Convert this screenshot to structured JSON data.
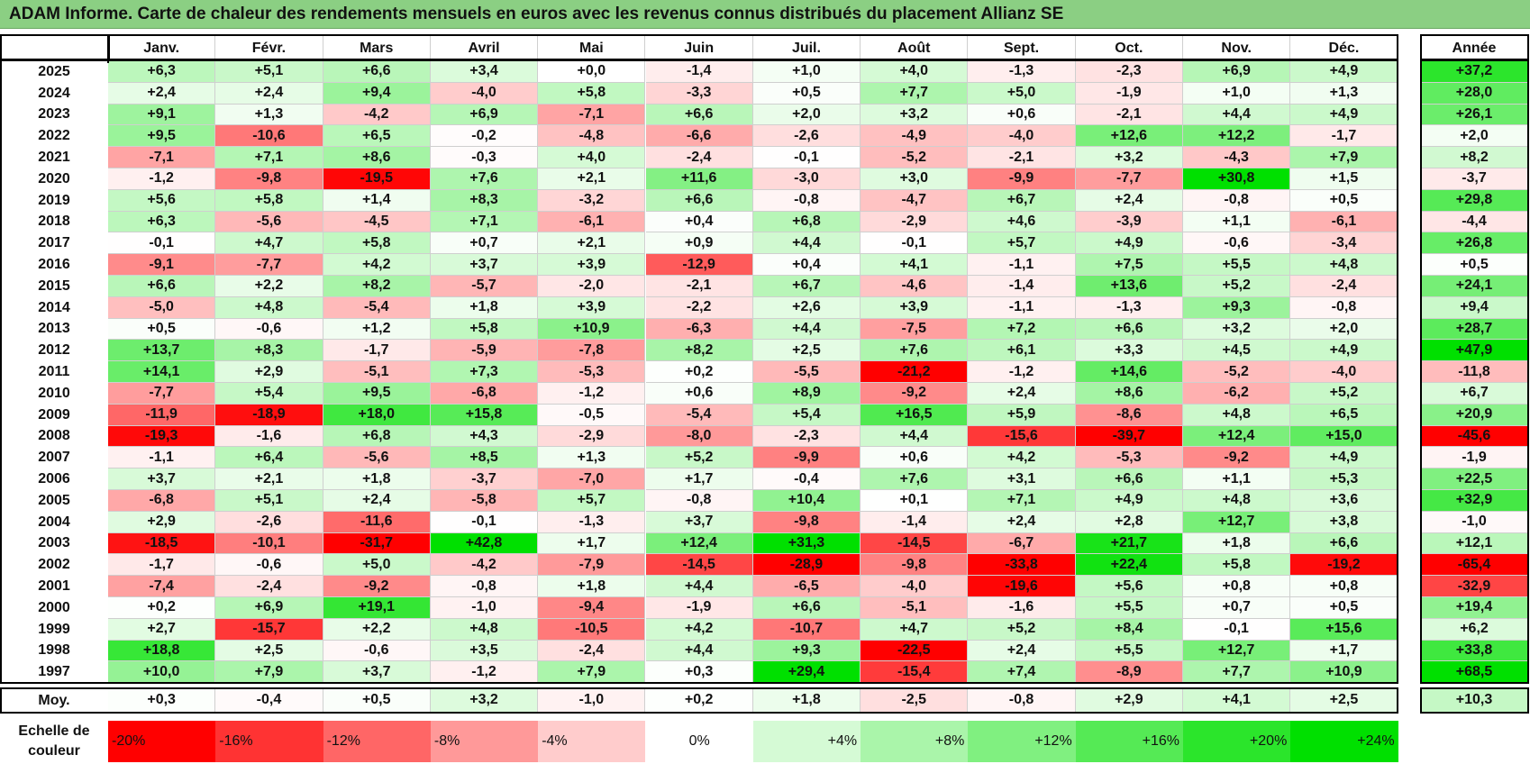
{
  "title": "ADAM Informe. Carte de chaleur des rendements mensuels en euros avec les revenus connus distribués du placement Allianz SE",
  "chart_data": {
    "type": "heatmap",
    "title": "ADAM Informe. Carte de chaleur des rendements mensuels en euros avec les revenus connus distribués du placement Allianz SE",
    "columns": [
      "Janv.",
      "Févr.",
      "Mars",
      "Avril",
      "Mai",
      "Juin",
      "Juil.",
      "Août",
      "Sept.",
      "Oct.",
      "Nov.",
      "Déc."
    ],
    "annual_header": "Année",
    "rows": [
      {
        "year": "2025",
        "values": [
          "+6,3",
          "+5,1",
          "+6,6",
          "+3,4",
          "+0,0",
          "-1,4",
          "+1,0",
          "+4,0",
          "-1,3",
          "-2,3",
          "+6,9",
          "+4,9"
        ],
        "annual": "+37,2"
      },
      {
        "year": "2024",
        "values": [
          "+2,4",
          "+2,4",
          "+9,4",
          "-4,0",
          "+5,8",
          "-3,3",
          "+0,5",
          "+7,7",
          "+5,0",
          "-1,9",
          "+1,0",
          "+1,3"
        ],
        "annual": "+28,0"
      },
      {
        "year": "2023",
        "values": [
          "+9,1",
          "+1,3",
          "-4,2",
          "+6,9",
          "-7,1",
          "+6,6",
          "+2,0",
          "+3,2",
          "+0,6",
          "-2,1",
          "+4,4",
          "+4,9"
        ],
        "annual": "+26,1"
      },
      {
        "year": "2022",
        "values": [
          "+9,5",
          "-10,6",
          "+6,5",
          "-0,2",
          "-4,8",
          "-6,6",
          "-2,6",
          "-4,9",
          "-4,0",
          "+12,6",
          "+12,2",
          "-1,7"
        ],
        "annual": "+2,0"
      },
      {
        "year": "2021",
        "values": [
          "-7,1",
          "+7,1",
          "+8,6",
          "-0,3",
          "+4,0",
          "-2,4",
          "-0,1",
          "-5,2",
          "-2,1",
          "+3,2",
          "-4,3",
          "+7,9"
        ],
        "annual": "+8,2"
      },
      {
        "year": "2020",
        "values": [
          "-1,2",
          "-9,8",
          "-19,5",
          "+7,6",
          "+2,1",
          "+11,6",
          "-3,0",
          "+3,0",
          "-9,9",
          "-7,7",
          "+30,8",
          "+1,5"
        ],
        "annual": "-3,7"
      },
      {
        "year": "2019",
        "values": [
          "+5,6",
          "+5,8",
          "+1,4",
          "+8,3",
          "-3,2",
          "+6,6",
          "-0,8",
          "-4,7",
          "+6,7",
          "+2,4",
          "-0,8",
          "+0,5"
        ],
        "annual": "+29,8"
      },
      {
        "year": "2018",
        "values": [
          "+6,3",
          "-5,6",
          "-4,5",
          "+7,1",
          "-6,1",
          "+0,4",
          "+6,8",
          "-2,9",
          "+4,6",
          "-3,9",
          "+1,1",
          "-6,1"
        ],
        "annual": "-4,4"
      },
      {
        "year": "2017",
        "values": [
          "-0,1",
          "+4,7",
          "+5,8",
          "+0,7",
          "+2,1",
          "+0,9",
          "+4,4",
          "-0,1",
          "+5,7",
          "+4,9",
          "-0,6",
          "-3,4"
        ],
        "annual": "+26,8"
      },
      {
        "year": "2016",
        "values": [
          "-9,1",
          "-7,7",
          "+4,2",
          "+3,7",
          "+3,9",
          "-12,9",
          "+0,4",
          "+4,1",
          "-1,1",
          "+7,5",
          "+5,5",
          "+4,8"
        ],
        "annual": "+0,5"
      },
      {
        "year": "2015",
        "values": [
          "+6,6",
          "+2,2",
          "+8,2",
          "-5,7",
          "-2,0",
          "-2,1",
          "+6,7",
          "-4,6",
          "-1,4",
          "+13,6",
          "+5,2",
          "-2,4"
        ],
        "annual": "+24,1"
      },
      {
        "year": "2014",
        "values": [
          "-5,0",
          "+4,8",
          "-5,4",
          "+1,8",
          "+3,9",
          "-2,2",
          "+2,6",
          "+3,9",
          "-1,1",
          "-1,3",
          "+9,3",
          "-0,8"
        ],
        "annual": "+9,4"
      },
      {
        "year": "2013",
        "values": [
          "+0,5",
          "-0,6",
          "+1,2",
          "+5,8",
          "+10,9",
          "-6,3",
          "+4,4",
          "-7,5",
          "+7,2",
          "+6,6",
          "+3,2",
          "+2,0"
        ],
        "annual": "+28,7"
      },
      {
        "year": "2012",
        "values": [
          "+13,7",
          "+8,3",
          "-1,7",
          "-5,9",
          "-7,8",
          "+8,2",
          "+2,5",
          "+7,6",
          "+6,1",
          "+3,3",
          "+4,5",
          "+4,9"
        ],
        "annual": "+47,9"
      },
      {
        "year": "2011",
        "values": [
          "+14,1",
          "+2,9",
          "-5,1",
          "+7,3",
          "-5,3",
          "+0,2",
          "-5,5",
          "-21,2",
          "-1,2",
          "+14,6",
          "-5,2",
          "-4,0"
        ],
        "annual": "-11,8"
      },
      {
        "year": "2010",
        "values": [
          "-7,7",
          "+5,4",
          "+9,5",
          "-6,8",
          "-1,2",
          "+0,6",
          "+8,9",
          "-9,2",
          "+2,4",
          "+8,6",
          "-6,2",
          "+5,2"
        ],
        "annual": "+6,7"
      },
      {
        "year": "2009",
        "values": [
          "-11,9",
          "-18,9",
          "+18,0",
          "+15,8",
          "-0,5",
          "-5,4",
          "+5,4",
          "+16,5",
          "+5,9",
          "-8,6",
          "+4,8",
          "+6,5"
        ],
        "annual": "+20,9"
      },
      {
        "year": "2008",
        "values": [
          "-19,3",
          "-1,6",
          "+6,8",
          "+4,3",
          "-2,9",
          "-8,0",
          "-2,3",
          "+4,4",
          "-15,6",
          "-39,7",
          "+12,4",
          "+15,0"
        ],
        "annual": "-45,6"
      },
      {
        "year": "2007",
        "values": [
          "-1,1",
          "+6,4",
          "-5,6",
          "+8,5",
          "+1,3",
          "+5,2",
          "-9,9",
          "+0,6",
          "+4,2",
          "-5,3",
          "-9,2",
          "+4,9"
        ],
        "annual": "-1,9"
      },
      {
        "year": "2006",
        "values": [
          "+3,7",
          "+2,1",
          "+1,8",
          "-3,7",
          "-7,0",
          "+1,7",
          "-0,4",
          "+7,6",
          "+3,1",
          "+6,6",
          "+1,1",
          "+5,3"
        ],
        "annual": "+22,5"
      },
      {
        "year": "2005",
        "values": [
          "-6,8",
          "+5,1",
          "+2,4",
          "-5,8",
          "+5,7",
          "-0,8",
          "+10,4",
          "+0,1",
          "+7,1",
          "+4,9",
          "+4,8",
          "+3,6"
        ],
        "annual": "+32,9"
      },
      {
        "year": "2004",
        "values": [
          "+2,9",
          "-2,6",
          "-11,6",
          "-0,1",
          "-1,3",
          "+3,7",
          "-9,8",
          "-1,4",
          "+2,4",
          "+2,8",
          "+12,7",
          "+3,8"
        ],
        "annual": "-1,0"
      },
      {
        "year": "2003",
        "values": [
          "-18,5",
          "-10,1",
          "-31,7",
          "+42,8",
          "+1,7",
          "+12,4",
          "+31,3",
          "-14,5",
          "-6,7",
          "+21,7",
          "+1,8",
          "+6,6"
        ],
        "annual": "+12,1"
      },
      {
        "year": "2002",
        "values": [
          "-1,7",
          "-0,6",
          "+5,0",
          "-4,2",
          "-7,9",
          "-14,5",
          "-28,9",
          "-9,8",
          "-33,8",
          "+22,4",
          "+5,8",
          "-19,2"
        ],
        "annual": "-65,4"
      },
      {
        "year": "2001",
        "values": [
          "-7,4",
          "-2,4",
          "-9,2",
          "-0,8",
          "+1,8",
          "+4,4",
          "-6,5",
          "-4,0",
          "-19,6",
          "+5,6",
          "+0,8",
          "+0,8"
        ],
        "annual": "-32,9"
      },
      {
        "year": "2000",
        "values": [
          "+0,2",
          "+6,9",
          "+19,1",
          "-1,0",
          "-9,4",
          "-1,9",
          "+6,6",
          "-5,1",
          "-1,6",
          "+5,5",
          "+0,7",
          "+0,5"
        ],
        "annual": "+19,4"
      },
      {
        "year": "1999",
        "values": [
          "+2,7",
          "-15,7",
          "+2,2",
          "+4,8",
          "-10,5",
          "+4,2",
          "-10,7",
          "+4,7",
          "+5,2",
          "+8,4",
          "-0,1",
          "+15,6"
        ],
        "annual": "+6,2"
      },
      {
        "year": "1998",
        "values": [
          "+18,8",
          "+2,5",
          "-0,6",
          "+3,5",
          "-2,4",
          "+4,4",
          "+9,3",
          "-22,5",
          "+2,4",
          "+5,5",
          "+12,7",
          "+1,7"
        ],
        "annual": "+33,8"
      },
      {
        "year": "1997",
        "values": [
          "+10,0",
          "+7,9",
          "+3,7",
          "-1,2",
          "+7,9",
          "+0,3",
          "+29,4",
          "-15,4",
          "+7,4",
          "-8,9",
          "+7,7",
          "+10,9"
        ],
        "annual": "+68,5"
      }
    ],
    "average": {
      "label": "Moy.",
      "values": [
        "+0,3",
        "-0,4",
        "+0,5",
        "+3,2",
        "-1,0",
        "+0,2",
        "+1,8",
        "-2,5",
        "-0,8",
        "+2,9",
        "+4,1",
        "+2,5"
      ],
      "annual": "+10,3"
    },
    "color_scale": {
      "label": "Echelle de couleur",
      "steps": [
        "-20%",
        "-16%",
        "-12%",
        "-8%",
        "-4%",
        "0%",
        "+4%",
        "+8%",
        "+12%",
        "+16%",
        "+20%",
        "+24%"
      ],
      "min": -20,
      "max": 24,
      "negative_color": "#ff0000",
      "positive_color": "#00e000",
      "neutral_color": "#ffffff"
    }
  }
}
